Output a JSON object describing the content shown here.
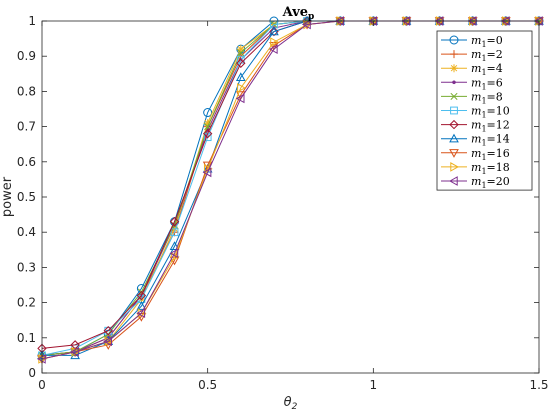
{
  "chart_data": {
    "type": "line",
    "title": "Ave",
    "title_subscript": "p",
    "xlabel": "θ",
    "xlabel_subscript": "2",
    "ylabel": "power",
    "xlim": [
      0,
      1.5
    ],
    "ylim": [
      0,
      1
    ],
    "xticks": [
      0,
      0.5,
      1,
      1.5
    ],
    "xtick_labels": [
      "0",
      "0.5",
      "1",
      "1.5"
    ],
    "yticks": [
      0,
      0.1,
      0.2,
      0.3,
      0.4,
      0.5,
      0.6,
      0.7,
      0.8,
      0.9,
      1
    ],
    "ytick_labels": [
      "0",
      "0.1",
      "0.2",
      "0.3",
      "0.4",
      "0.5",
      "0.6",
      "0.7",
      "0.8",
      "0.9",
      "1"
    ],
    "grid": false,
    "legend_position": "top-right",
    "x": [
      0,
      0.1,
      0.2,
      0.3,
      0.4,
      0.5,
      0.6,
      0.7,
      0.8,
      0.9,
      1.0,
      1.1,
      1.2,
      1.3,
      1.4,
      1.5
    ],
    "series": [
      {
        "name": "m1=0",
        "label_var": "m",
        "label_sub": "1",
        "label_val": "=0",
        "color": "#0072BD",
        "marker": "circle",
        "values": [
          0.05,
          0.06,
          0.11,
          0.24,
          0.43,
          0.74,
          0.92,
          1.0,
          1.0,
          1.0,
          1.0,
          1.0,
          1.0,
          1.0,
          1.0,
          1.0
        ]
      },
      {
        "name": "m1=2",
        "label_var": "m",
        "label_sub": "1",
        "label_val": "=2",
        "color": "#D95319",
        "marker": "plus",
        "values": [
          0.05,
          0.06,
          0.1,
          0.22,
          0.4,
          0.7,
          0.9,
          0.99,
          1.0,
          1.0,
          1.0,
          1.0,
          1.0,
          1.0,
          1.0,
          1.0
        ]
      },
      {
        "name": "m1=4",
        "label_var": "m",
        "label_sub": "1",
        "label_val": "=4",
        "color": "#EDB120",
        "marker": "asterisk",
        "values": [
          0.05,
          0.06,
          0.09,
          0.21,
          0.41,
          0.71,
          0.92,
          0.99,
          1.0,
          1.0,
          1.0,
          1.0,
          1.0,
          1.0,
          1.0,
          1.0
        ]
      },
      {
        "name": "m1=6",
        "label_var": "m",
        "label_sub": "1",
        "label_val": "=6",
        "color": "#7E2F8E",
        "marker": "dot",
        "values": [
          0.05,
          0.06,
          0.1,
          0.22,
          0.42,
          0.69,
          0.89,
          0.98,
          1.0,
          1.0,
          1.0,
          1.0,
          1.0,
          1.0,
          1.0,
          1.0
        ]
      },
      {
        "name": "m1=8",
        "label_var": "m",
        "label_sub": "1",
        "label_val": "=8",
        "color": "#77AC30",
        "marker": "x",
        "values": [
          0.05,
          0.06,
          0.11,
          0.23,
          0.42,
          0.7,
          0.91,
          0.99,
          1.0,
          1.0,
          1.0,
          1.0,
          1.0,
          1.0,
          1.0,
          1.0
        ]
      },
      {
        "name": "m1=10",
        "label_var": "m",
        "label_sub": "1",
        "label_val": "=10",
        "color": "#4DBEEE",
        "marker": "square",
        "values": [
          0.05,
          0.07,
          0.12,
          0.21,
          0.4,
          0.67,
          0.89,
          0.99,
          1.0,
          1.0,
          1.0,
          1.0,
          1.0,
          1.0,
          1.0,
          1.0
        ]
      },
      {
        "name": "m1=12",
        "label_var": "m",
        "label_sub": "1",
        "label_val": "=12",
        "color": "#A2142F",
        "marker": "diamond",
        "values": [
          0.07,
          0.08,
          0.12,
          0.22,
          0.43,
          0.68,
          0.88,
          0.97,
          1.0,
          1.0,
          1.0,
          1.0,
          1.0,
          1.0,
          1.0,
          1.0
        ]
      },
      {
        "name": "m1=14",
        "label_var": "m",
        "label_sub": "1",
        "label_val": "=14",
        "color": "#0072BD",
        "marker": "triangle-up",
        "values": [
          0.05,
          0.05,
          0.09,
          0.19,
          0.36,
          0.58,
          0.84,
          0.97,
          1.0,
          1.0,
          1.0,
          1.0,
          1.0,
          1.0,
          1.0,
          1.0
        ]
      },
      {
        "name": "m1=16",
        "label_var": "m",
        "label_sub": "1",
        "label_val": "=16",
        "color": "#D95319",
        "marker": "triangle-down",
        "values": [
          0.04,
          0.06,
          0.08,
          0.16,
          0.32,
          0.59,
          0.79,
          0.93,
          0.99,
          1.0,
          1.0,
          1.0,
          1.0,
          1.0,
          1.0,
          1.0
        ]
      },
      {
        "name": "m1=18",
        "label_var": "m",
        "label_sub": "1",
        "label_val": "=18",
        "color": "#EDB120",
        "marker": "triangle-right",
        "values": [
          0.04,
          0.06,
          0.09,
          0.17,
          0.33,
          0.58,
          0.81,
          0.94,
          0.99,
          1.0,
          1.0,
          1.0,
          1.0,
          1.0,
          1.0,
          1.0
        ]
      },
      {
        "name": "m1=20",
        "label_var": "m",
        "label_sub": "1",
        "label_val": "=20",
        "color": "#7E2F8E",
        "marker": "triangle-left",
        "values": [
          0.04,
          0.06,
          0.09,
          0.17,
          0.34,
          0.57,
          0.78,
          0.92,
          0.99,
          1.0,
          1.0,
          1.0,
          1.0,
          1.0,
          1.0,
          1.0
        ]
      }
    ]
  }
}
